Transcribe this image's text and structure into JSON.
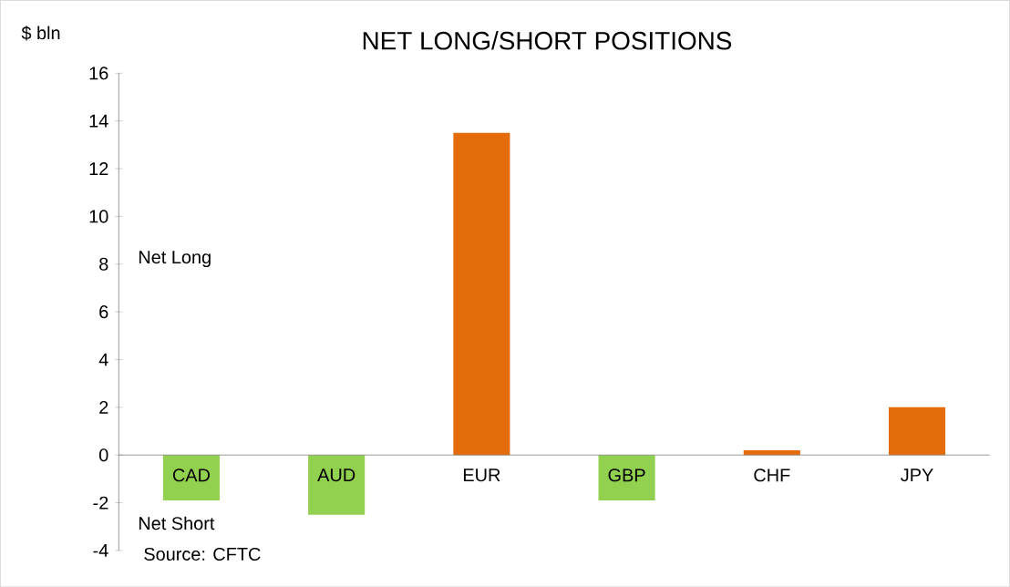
{
  "chart_data": {
    "type": "bar",
    "title": "NET LONG/SHORT POSITIONS",
    "ylabel": "$ bln",
    "categories": [
      "CAD",
      "AUD",
      "EUR",
      "GBP",
      "CHF",
      "JPY"
    ],
    "values": [
      -1.9,
      -2.5,
      13.5,
      -1.9,
      0.2,
      2.0
    ],
    "colors": [
      "#92d050",
      "#92d050",
      "#e46c0a",
      "#92d050",
      "#e46c0a",
      "#e46c0a"
    ],
    "ylim": [
      -4,
      16
    ],
    "yticks": [
      -4,
      -2,
      0,
      2,
      4,
      6,
      8,
      10,
      12,
      14,
      16
    ],
    "annotations": [
      "Net Long",
      "Net Short",
      "Source: CFTC"
    ]
  }
}
